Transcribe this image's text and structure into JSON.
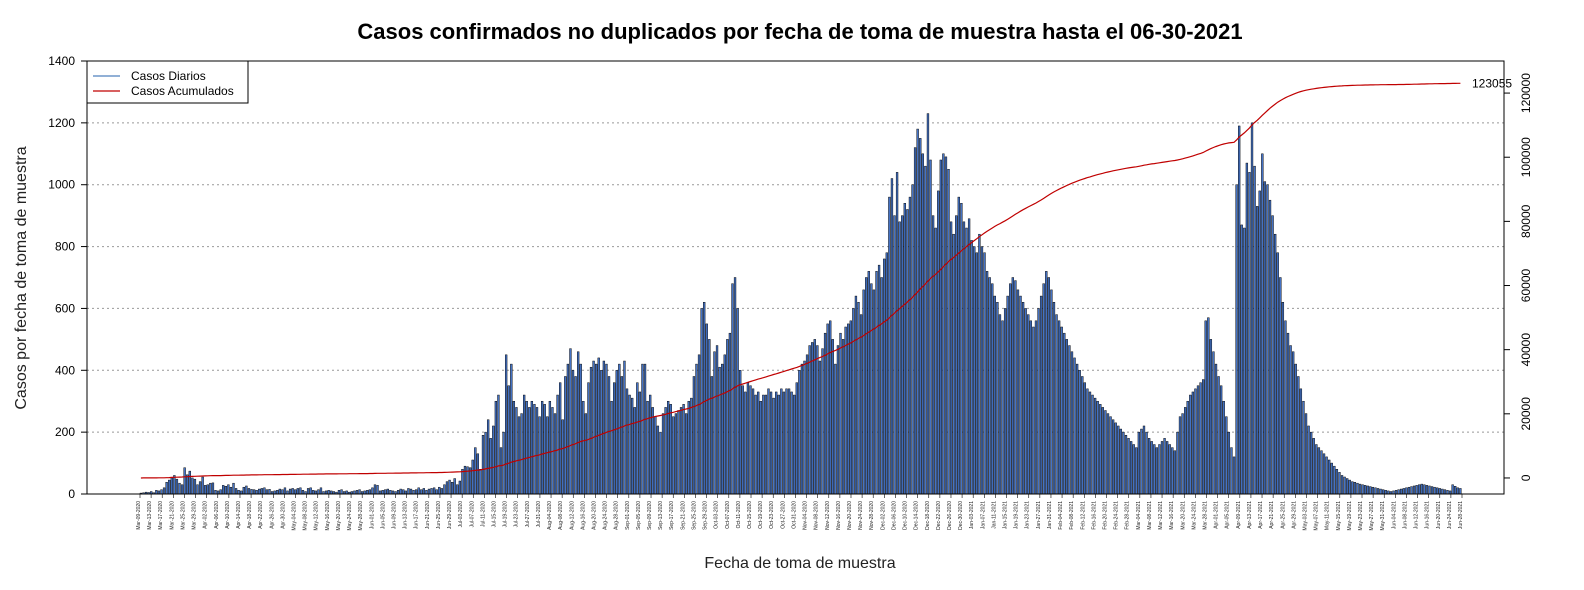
{
  "chart_data": {
    "type": "bar",
    "title": "Casos confirmados no duplicados por fecha de toma de muestra hasta el 06-30-2021",
    "xlabel": "Fecha de toma de muestra",
    "ylabel": "Casos por fecha de toma de muestra",
    "ylim": [
      0,
      1400
    ],
    "yticks": [
      0,
      200,
      400,
      600,
      800,
      1000,
      1200,
      1400
    ],
    "y2lim": [
      -5000,
      130000
    ],
    "y2ticks": [
      0,
      20000,
      40000,
      60000,
      80000,
      100000,
      120000
    ],
    "grid": "horizontal dotted",
    "legend_position": "top-left",
    "series": [
      {
        "name": "Casos Diarios",
        "color": "#4f81bd",
        "type": "bar"
      },
      {
        "name": "Casos Acumulados",
        "color": "#c00000",
        "type": "line",
        "final_value": 123055
      }
    ],
    "final_label": "123055",
    "date_labels": [
      "Mar-09-2020",
      "Mar-13-2020",
      "Mar-17-2020",
      "Mar-21-2020",
      "Mar-25-2020",
      "Mar-29-2020",
      "Apr-02-2020",
      "Apr-06-2020",
      "Apr-10-2020",
      "Apr-14-2020",
      "Apr-18-2020",
      "Apr-22-2020",
      "Apr-26-2020",
      "Apr-30-2020",
      "May-04-2020",
      "May-08-2020",
      "May-12-2020",
      "May-16-2020",
      "May-20-2020",
      "May-24-2020",
      "May-28-2020",
      "Jun-01-2020",
      "Jun-05-2020",
      "Jun-09-2020",
      "Jun-13-2020",
      "Jun-17-2020",
      "Jun-21-2020",
      "Jun-25-2020",
      "Jun-29-2020",
      "Jul-03-2020",
      "Jul-07-2020",
      "Jul-11-2020",
      "Jul-15-2020",
      "Jul-19-2020",
      "Jul-23-2020",
      "Jul-27-2020",
      "Jul-31-2020",
      "Aug-04-2020",
      "Aug-08-2020",
      "Aug-12-2020",
      "Aug-16-2020",
      "Aug-20-2020",
      "Aug-24-2020",
      "Aug-28-2020",
      "Sep-01-2020",
      "Sep-05-2020",
      "Sep-09-2020",
      "Sep-13-2020",
      "Sep-17-2020",
      "Sep-21-2020",
      "Sep-25-2020",
      "Sep-29-2020",
      "Oct-03-2020",
      "Oct-07-2020",
      "Oct-11-2020",
      "Oct-15-2020",
      "Oct-19-2020",
      "Oct-23-2020",
      "Oct-27-2020",
      "Oct-31-2020",
      "Nov-04-2020",
      "Nov-08-2020",
      "Nov-12-2020",
      "Nov-16-2020",
      "Nov-20-2020",
      "Nov-24-2020",
      "Nov-28-2020",
      "Dec-02-2020",
      "Dec-06-2020",
      "Dec-10-2020",
      "Dec-14-2020",
      "Dec-18-2020",
      "Dec-22-2020",
      "Dec-26-2020",
      "Dec-30-2020",
      "Jan-03-2021",
      "Jan-07-2021",
      "Jan-11-2021",
      "Jan-15-2021",
      "Jan-19-2021",
      "Jan-23-2021",
      "Jan-27-2021",
      "Jan-31-2021",
      "Feb-04-2021",
      "Feb-08-2021",
      "Feb-12-2021",
      "Feb-16-2021",
      "Feb-20-2021",
      "Feb-24-2021",
      "Feb-28-2021",
      "Mar-04-2021",
      "Mar-08-2021",
      "Mar-12-2021",
      "Mar-16-2021",
      "Mar-20-2021",
      "Mar-24-2021",
      "Mar-28-2021",
      "Apr-01-2021",
      "Apr-05-2021",
      "Apr-09-2021",
      "Apr-13-2021",
      "Apr-17-2021",
      "Apr-21-2021",
      "Apr-25-2021",
      "Apr-29-2021",
      "May-03-2021",
      "May-07-2021",
      "May-11-2021",
      "May-15-2021",
      "May-19-2021",
      "May-23-2021",
      "May-27-2021",
      "May-31-2021",
      "Jun-04-2021",
      "Jun-08-2021",
      "Jun-12-2021",
      "Jun-16-2021",
      "Jun-20-2021",
      "Jun-24-2021",
      "Jun-28-2021"
    ],
    "daily_values": [
      3,
      4,
      6,
      5,
      8,
      4,
      12,
      10,
      14,
      20,
      38,
      45,
      52,
      60,
      48,
      35,
      30,
      85,
      62,
      74,
      52,
      48,
      30,
      40,
      55,
      28,
      30,
      35,
      36,
      12,
      10,
      14,
      28,
      25,
      30,
      22,
      35,
      18,
      12,
      10,
      22,
      26,
      18,
      15,
      14,
      12,
      16,
      18,
      20,
      14,
      15,
      8,
      10,
      12,
      16,
      14,
      20,
      10,
      16,
      18,
      14,
      18,
      20,
      12,
      8,
      18,
      20,
      12,
      10,
      14,
      20,
      8,
      10,
      12,
      10,
      8,
      6,
      12,
      14,
      8,
      10,
      6,
      8,
      10,
      12,
      14,
      8,
      10,
      12,
      14,
      20,
      30,
      28,
      10,
      12,
      14,
      16,
      12,
      10,
      8,
      12,
      16,
      14,
      10,
      18,
      16,
      12,
      14,
      20,
      14,
      18,
      12,
      16,
      18,
      20,
      14,
      22,
      18,
      30,
      40,
      45,
      38,
      50,
      30,
      42,
      80,
      90,
      88,
      85,
      110,
      150,
      130,
      80,
      190,
      200,
      240,
      180,
      220,
      300,
      320,
      150,
      200,
      450,
      350,
      420,
      300,
      280,
      250,
      260,
      320,
      300,
      280,
      300,
      290,
      280,
      250,
      300,
      290,
      250,
      300,
      280,
      260,
      320,
      360,
      240,
      380,
      420,
      470,
      400,
      380,
      460,
      420,
      300,
      260,
      360,
      410,
      430,
      420,
      440,
      400,
      430,
      420,
      380,
      300,
      360,
      400,
      420,
      380,
      430,
      340,
      320,
      310,
      280,
      360,
      330,
      420,
      420,
      300,
      320,
      280,
      250,
      220,
      200,
      260,
      280,
      300,
      290,
      250,
      260,
      270,
      280,
      290,
      260,
      300,
      310,
      380,
      420,
      450,
      600,
      620,
      550,
      500,
      380,
      460,
      480,
      410,
      420,
      450,
      500,
      520,
      680,
      700,
      600,
      400,
      350,
      330,
      360,
      350,
      340,
      320,
      330,
      300,
      320,
      320,
      340,
      330,
      310,
      330,
      320,
      340,
      330,
      340,
      340,
      330,
      320,
      360,
      400,
      420,
      430,
      450,
      480,
      490,
      500,
      480,
      430,
      470,
      520,
      550,
      560,
      500,
      420,
      480,
      520,
      500,
      540,
      550,
      560,
      600,
      640,
      620,
      580,
      660,
      700,
      720,
      680,
      660,
      720,
      740,
      700,
      760,
      780,
      960,
      1020,
      900,
      1040,
      880,
      900,
      940,
      920,
      960,
      1000,
      1120,
      1180,
      1150,
      1100,
      1060,
      1230,
      1080,
      900,
      860,
      980,
      1080,
      1100,
      1090,
      1050,
      880,
      840,
      900,
      960,
      940,
      880,
      860,
      890,
      820,
      800,
      780,
      840,
      800,
      780,
      720,
      700,
      680,
      640,
      620,
      580,
      560,
      600,
      640,
      680,
      700,
      690,
      660,
      640,
      620,
      600,
      580,
      560,
      540,
      560,
      600,
      640,
      680,
      720,
      700,
      660,
      620,
      580,
      560,
      540,
      520,
      500,
      480,
      460,
      440,
      420,
      400,
      380,
      360,
      340,
      330,
      320,
      310,
      300,
      290,
      280,
      270,
      260,
      250,
      240,
      230,
      220,
      210,
      200,
      190,
      180,
      170,
      160,
      150,
      200,
      210,
      220,
      200,
      180,
      170,
      160,
      150,
      160,
      170,
      180,
      170,
      160,
      150,
      140,
      200,
      250,
      260,
      280,
      300,
      320,
      330,
      340,
      350,
      360,
      370,
      560,
      570,
      500,
      460,
      420,
      380,
      350,
      300,
      250,
      200,
      150,
      120,
      1000,
      1190,
      870,
      860,
      1070,
      1040,
      1200,
      1060,
      930,
      980,
      1100,
      1010,
      1000,
      950,
      900,
      840,
      780,
      700,
      620,
      560,
      520,
      480,
      460,
      420,
      380,
      340,
      300,
      260,
      220,
      200,
      180,
      160,
      150,
      140,
      130,
      120,
      110,
      100,
      90,
      80,
      70,
      60,
      55,
      50,
      45,
      40,
      38,
      35,
      32,
      30,
      28,
      26,
      24,
      22,
      20,
      18,
      16,
      14,
      12,
      10,
      8,
      10,
      12,
      14,
      16,
      18,
      20,
      22,
      24,
      26,
      28,
      30,
      32,
      30,
      28,
      26,
      24,
      22,
      20,
      18,
      16,
      14,
      12,
      10,
      30,
      25,
      20,
      18
    ]
  }
}
